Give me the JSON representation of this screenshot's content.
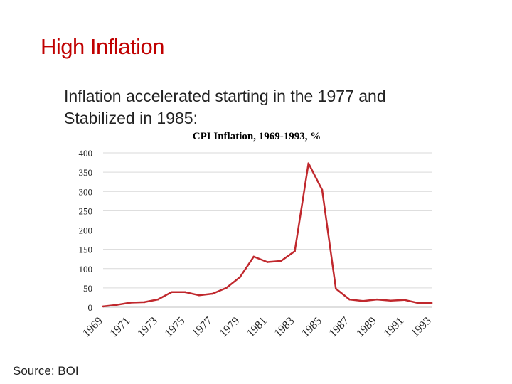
{
  "slide": {
    "title": "High Inflation",
    "subtitle_line1": "Inflation accelerated starting in the 1977 and",
    "subtitle_line2": "Stabilized in  1985:",
    "source": "Source: BOI"
  },
  "colors": {
    "title": "#c00000",
    "series": "#c0282d",
    "grid": "#d9d9d9"
  },
  "chart_data": {
    "type": "line",
    "title": "CPI Inflation, 1969-1993, %",
    "xlabel": "",
    "ylabel": "",
    "ylim": [
      0,
      400
    ],
    "yticks": [
      0,
      50,
      100,
      150,
      200,
      250,
      300,
      350,
      400
    ],
    "grid": true,
    "legend": "none",
    "x": [
      1969,
      1970,
      1971,
      1972,
      1973,
      1974,
      1975,
      1976,
      1977,
      1978,
      1979,
      1980,
      1981,
      1982,
      1983,
      1984,
      1985,
      1986,
      1987,
      1988,
      1989,
      1990,
      1991,
      1992,
      1993
    ],
    "xtick_labels": [
      "1969",
      "1971",
      "1973",
      "1975",
      "1977",
      "1979",
      "1981",
      "1983",
      "1985",
      "1987",
      "1989",
      "1991",
      "1993"
    ],
    "series": [
      {
        "name": "CPI Inflation",
        "values": [
          2,
          6,
          12,
          13,
          20,
          39,
          39,
          31,
          35,
          50,
          78,
          131,
          117,
          120,
          145,
          373,
          304,
          48,
          20,
          16,
          20,
          17,
          19,
          11,
          11
        ]
      }
    ]
  }
}
